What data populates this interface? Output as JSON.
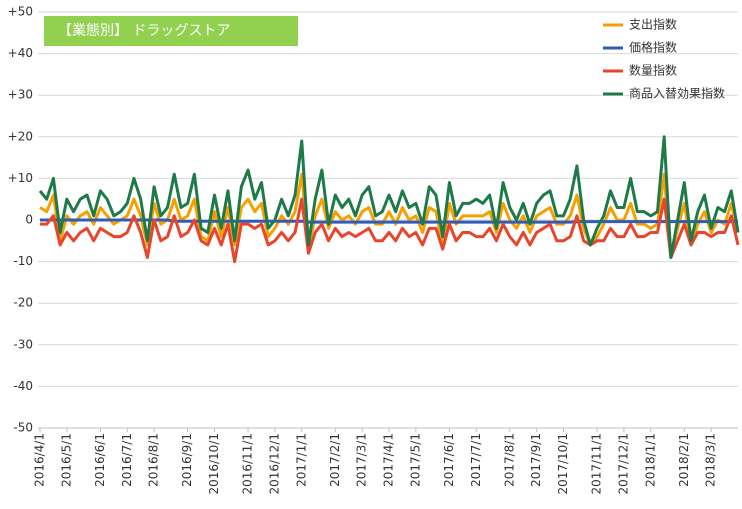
{
  "chart_data": {
    "type": "line",
    "title": "【業態別】 ドラッグストア",
    "categories": [
      "2016/4/1",
      null,
      null,
      null,
      "2016/5/1",
      null,
      null,
      null,
      null,
      "2016/6/1",
      null,
      null,
      null,
      "2016/7/1",
      null,
      null,
      null,
      "2016/8/1",
      null,
      null,
      null,
      null,
      "2016/9/1",
      null,
      null,
      null,
      "2016/10/1",
      null,
      null,
      null,
      null,
      "2016/11/1",
      null,
      null,
      null,
      "2016/12/1",
      null,
      null,
      null,
      "2017/1/1",
      null,
      null,
      null,
      null,
      "2017/2/1",
      null,
      null,
      null,
      "2017/3/1",
      null,
      null,
      null,
      "2017/4/1",
      null,
      null,
      null,
      "2017/5/1",
      null,
      null,
      null,
      null,
      "2017/6/1",
      null,
      null,
      null,
      "2017/7/1",
      null,
      null,
      null,
      null,
      "2017/8/1",
      null,
      null,
      null,
      "2017/9/1",
      null,
      null,
      null,
      "2017/10/1",
      null,
      null,
      null,
      null,
      "2017/11/1",
      null,
      null,
      null,
      "2017/12/1",
      null,
      null,
      null,
      "2018/1/1",
      null,
      null,
      null,
      null,
      "2018/2/1",
      null,
      null,
      null,
      "2018/3/1",
      null,
      null,
      null,
      null
    ],
    "series": [
      {
        "name": "支出指数",
        "color": "#f5a000",
        "values": [
          3,
          2,
          6,
          -5,
          1,
          -1,
          1,
          2,
          -1,
          3,
          1,
          -1,
          0,
          1,
          5,
          1,
          -6,
          4,
          -1,
          0,
          5,
          0,
          1,
          5,
          -4,
          -5,
          2,
          -4,
          3,
          -6,
          3,
          5,
          2,
          4,
          -4,
          -2,
          1,
          -1,
          2,
          11,
          -7,
          1,
          5,
          -2,
          2,
          0,
          1,
          -1,
          2,
          3,
          -1,
          -1,
          2,
          -1,
          3,
          0,
          1,
          -3,
          3,
          2,
          -6,
          4,
          -1,
          1,
          1,
          1,
          1,
          2,
          -3,
          4,
          0,
          -2,
          1,
          -3,
          1,
          2,
          3,
          -1,
          -1,
          1,
          6,
          -2,
          -6,
          -4,
          -1,
          3,
          0,
          0,
          4,
          -1,
          -1,
          -2,
          -1,
          11,
          -9,
          -2,
          4,
          -6,
          -1,
          2,
          -3,
          0,
          -1,
          4,
          -3
        ]
      },
      {
        "name": "価格指数",
        "color": "#2e5cb8",
        "values": [
          0,
          0,
          0,
          0,
          0,
          0,
          0,
          0,
          0,
          0,
          0,
          0,
          0,
          0,
          0,
          0,
          0,
          0,
          0,
          0,
          -0.3,
          -0.3,
          -0.3,
          -0.3,
          -0.3,
          -0.3,
          -0.3,
          -0.3,
          -0.3,
          -0.3,
          -0.3,
          -0.3,
          -0.3,
          -0.3,
          -0.3,
          -0.3,
          -0.3,
          -0.3,
          -0.3,
          -0.3,
          -0.5,
          -0.5,
          -0.5,
          -0.5,
          -0.5,
          -0.5,
          -0.5,
          -0.5,
          -0.5,
          -0.5,
          -0.5,
          -0.5,
          -0.5,
          -0.5,
          -0.5,
          -0.5,
          -0.5,
          -0.5,
          -0.5,
          -0.5,
          -0.5,
          -0.5,
          -0.5,
          -0.5,
          -0.5,
          -0.5,
          -0.5,
          -0.5,
          -0.5,
          -0.5,
          -0.5,
          -0.5,
          -0.5,
          -0.5,
          -0.5,
          -0.5,
          -0.5,
          -0.5,
          -0.5,
          -0.5,
          -0.4,
          -0.4,
          -0.4,
          -0.4,
          -0.4,
          -0.4,
          -0.4,
          -0.4,
          -0.4,
          -0.4,
          -0.4,
          -0.4,
          -0.4,
          -0.4,
          -0.4,
          -0.4,
          -0.4,
          -0.4,
          -0.4,
          -0.4,
          -0.4,
          -0.4,
          -0.4,
          -0.4,
          -0.4
        ]
      },
      {
        "name": "数量指数",
        "color": "#e8452c",
        "values": [
          -1,
          -1,
          1,
          -6,
          -3,
          -5,
          -3,
          -2,
          -5,
          -2,
          -3,
          -4,
          -4,
          -3,
          1,
          -3,
          -9,
          0,
          -5,
          -4,
          1,
          -4,
          -3,
          0,
          -5,
          -6,
          -2,
          -6,
          -1,
          -10,
          -1,
          -1,
          -2,
          -1,
          -6,
          -5,
          -3,
          -5,
          -3,
          5,
          -8,
          -3,
          -1,
          -5,
          -2,
          -4,
          -3,
          -4,
          -3,
          -2,
          -5,
          -5,
          -3,
          -5,
          -2,
          -4,
          -3,
          -6,
          -2,
          -2,
          -7,
          -1,
          -5,
          -3,
          -3,
          -4,
          -4,
          -2,
          -5,
          -1,
          -4,
          -6,
          -3,
          -6,
          -3,
          -2,
          -1,
          -5,
          -5,
          -4,
          1,
          -5,
          -6,
          -5,
          -5,
          -2,
          -4,
          -4,
          -1,
          -4,
          -4,
          -3,
          -3,
          5,
          -9,
          -5,
          -1,
          -6,
          -3,
          -3,
          -4,
          -3,
          -3,
          1,
          -6
        ]
      },
      {
        "name": "商品入替効果指数",
        "color": "#1f7a4a",
        "values": [
          7,
          5,
          10,
          -3,
          5,
          2,
          5,
          6,
          1,
          7,
          5,
          1,
          2,
          4,
          10,
          5,
          -5,
          8,
          1,
          3,
          11,
          3,
          4,
          11,
          -2,
          -3,
          6,
          -2,
          7,
          -5,
          8,
          12,
          5,
          9,
          -2,
          0,
          5,
          1,
          6,
          19,
          -6,
          5,
          12,
          -1,
          6,
          3,
          5,
          1,
          6,
          8,
          1,
          2,
          6,
          2,
          7,
          3,
          4,
          -1,
          8,
          6,
          -4,
          9,
          1,
          4,
          4,
          5,
          4,
          6,
          -2,
          9,
          3,
          0,
          4,
          -1,
          4,
          6,
          7,
          1,
          1,
          5,
          13,
          0,
          -6,
          -2,
          1,
          7,
          3,
          3,
          10,
          2,
          2,
          1,
          2,
          20,
          -9,
          0,
          9,
          -5,
          2,
          6,
          -2,
          3,
          2,
          7,
          -3
        ]
      }
    ],
    "ylim": [
      -50,
      50
    ],
    "yticks": [
      {
        "value": 50,
        "label": "+50"
      },
      {
        "value": 40,
        "label": "+40"
      },
      {
        "value": 30,
        "label": "+30"
      },
      {
        "value": 20,
        "label": "+20"
      },
      {
        "value": 10,
        "label": "+10"
      },
      0,
      -10,
      -20,
      -30,
      -40,
      -50
    ],
    "grid": true,
    "legend": "top-right"
  }
}
